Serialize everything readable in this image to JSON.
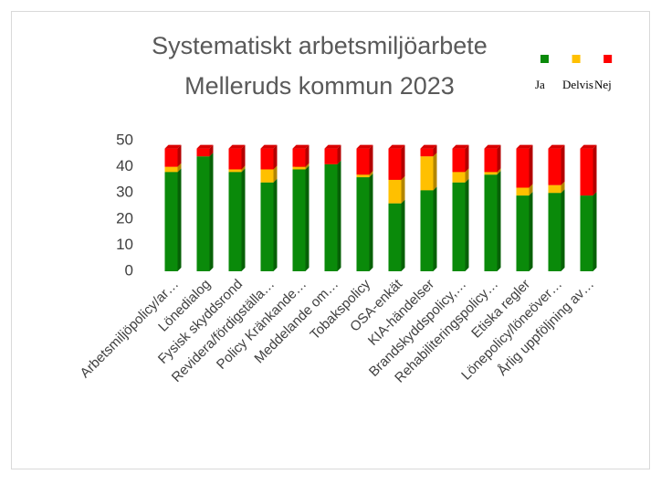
{
  "chart_data": {
    "type": "bar",
    "stacked": true,
    "title": [
      "Systematiskt arbetsmiljöarbete",
      "Melleruds kommun 2023"
    ],
    "categories": [
      "Arbetsmiljöpolicy/ar…",
      "Lönedialog",
      "Fysisk skyddsrond",
      "Revidera/fördigställa…",
      "Policy Kränkande…",
      "Meddelande om…",
      "Tobakspolicy",
      "OSA-enkät",
      "KIA-händelser",
      "Brandskyddspolicy,…",
      "Rehabiliteringspolicy…",
      "Etiska regler",
      "Lönepolicy/löneöver…",
      "Årlig uppföljning av…"
    ],
    "series": [
      {
        "name": "Ja",
        "color": "#0a8a0a",
        "values": [
          38,
          44,
          38,
          34,
          39,
          41,
          36,
          26,
          31,
          34,
          37,
          29,
          30,
          29
        ]
      },
      {
        "name": "Delvis",
        "color": "#ffc000",
        "values": [
          2,
          0,
          1,
          5,
          1,
          0,
          1,
          9,
          13,
          4,
          1,
          3,
          3,
          0
        ]
      },
      {
        "name": "Nej",
        "color": "#ff0000",
        "values": [
          7,
          3,
          8,
          8,
          7,
          6,
          10,
          12,
          3,
          9,
          9,
          15,
          14,
          18
        ]
      }
    ],
    "ylim": [
      0,
      50
    ],
    "yticks": [
      0,
      10,
      20,
      30,
      40,
      50
    ],
    "grid": false,
    "legend": "top-right"
  }
}
